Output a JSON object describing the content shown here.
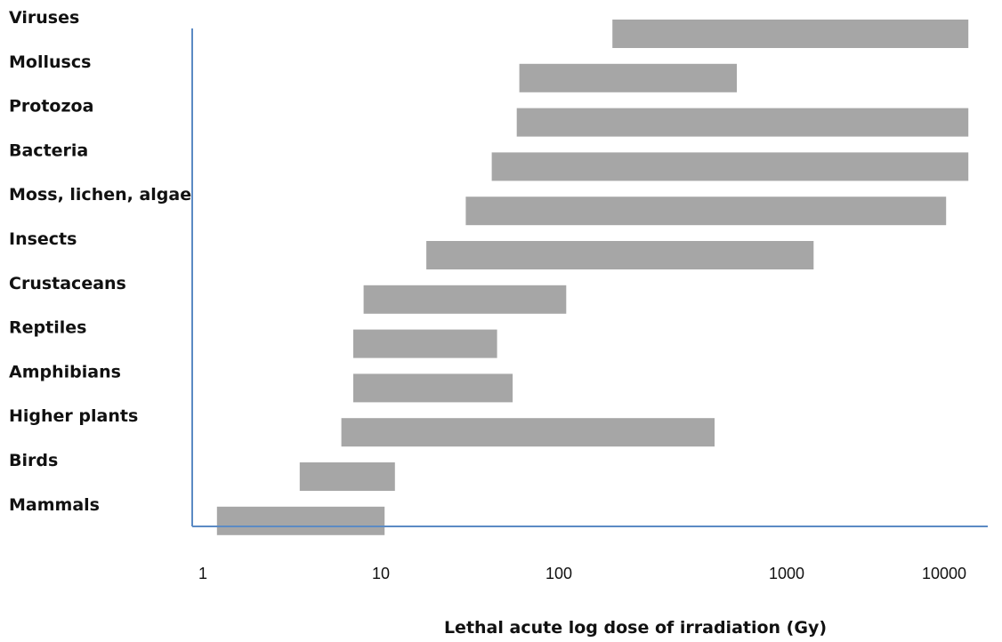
{
  "chart_data": {
    "type": "bar",
    "orientation": "horizontal-range",
    "x_scale": "log",
    "xlabel": "Lethal acute log dose of irradiation (Gy)",
    "ylabel": "",
    "title": "",
    "x_ticks": [
      "1",
      "10",
      "100",
      "1000",
      "10000"
    ],
    "grid": false,
    "legend": "none",
    "bar_color": "#a6a6a6",
    "axis_color": "#5b8ac4",
    "categories": [
      "Viruses",
      "Molluscs",
      "Protozoa",
      "Bacteria",
      "Moss, lichen, algae",
      "Insects",
      "Crustaceans",
      "Reptiles",
      "Amphibians",
      "Higher plants",
      "Birds",
      "Mammals"
    ],
    "ranges": [
      [
        200,
        20000
      ],
      [
        60,
        1000
      ],
      [
        58,
        20000
      ],
      [
        42,
        20000
      ],
      [
        30,
        15000
      ],
      [
        18,
        2700
      ],
      [
        8,
        110
      ],
      [
        7,
        45
      ],
      [
        7,
        55
      ],
      [
        6,
        750
      ],
      [
        3.5,
        12
      ],
      [
        1.2,
        10.5
      ]
    ]
  }
}
